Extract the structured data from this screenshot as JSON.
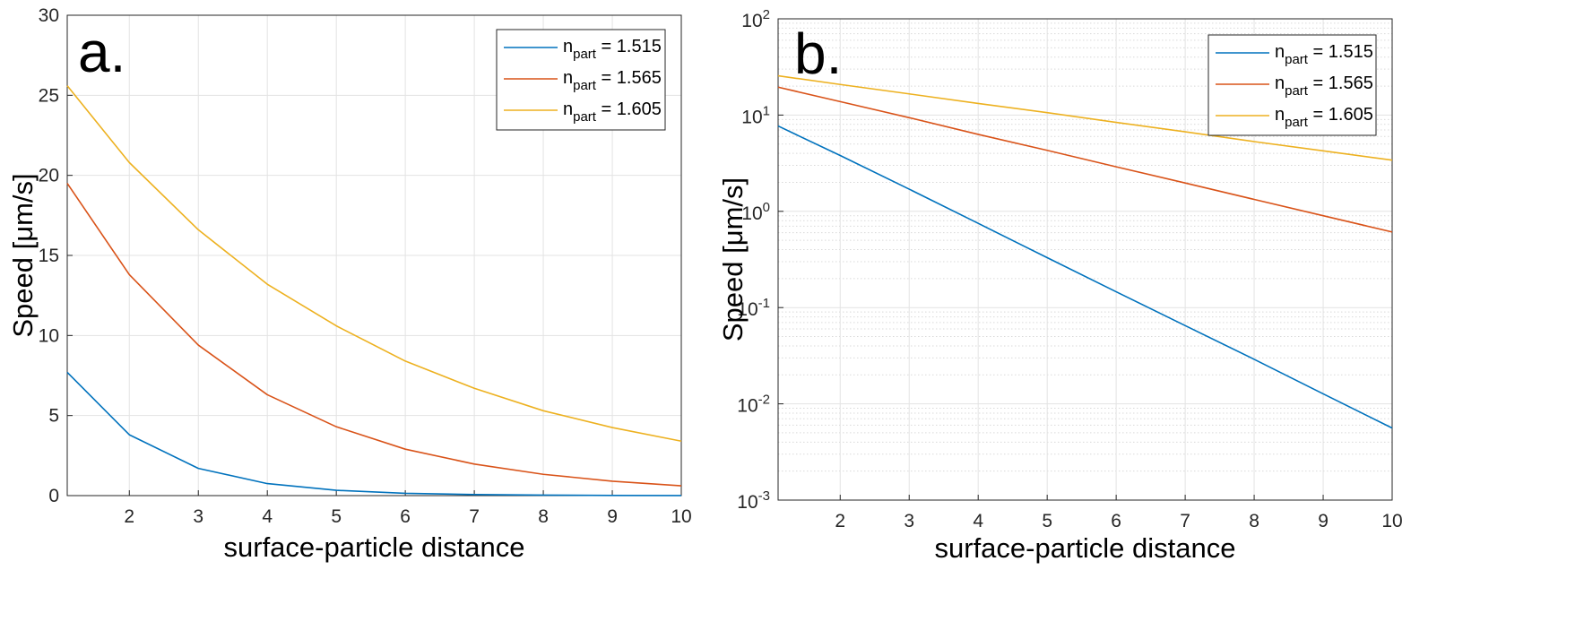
{
  "chart_data": [
    {
      "type": "line",
      "panel_label": "a.",
      "xlabel": "surface-particle distance",
      "ylabel": "Speed [μm/s]",
      "yscale": "linear",
      "xlim": [
        1.1,
        10
      ],
      "ylim": [
        0,
        30
      ],
      "xticks": [
        2,
        3,
        4,
        5,
        6,
        7,
        8,
        9,
        10
      ],
      "xtick_labels": [
        "2",
        "3",
        "4",
        "5",
        "6",
        "7",
        "8",
        "9",
        "10"
      ],
      "yticks": [
        0,
        5,
        10,
        15,
        20,
        25,
        30
      ],
      "ytick_labels": [
        "0",
        "5",
        "10",
        "15",
        "20",
        "25",
        "30"
      ],
      "grid": true,
      "legend_position": "top-right",
      "series": [
        {
          "name": "n_part = 1.515",
          "legend_prefix": "n",
          "legend_sub": "part",
          "legend_suffix": " = 1.515",
          "color": "#0072BD",
          "x": [
            1.1,
            2,
            3,
            4,
            5,
            6,
            7,
            8,
            9,
            10
          ],
          "y": [
            7.7,
            3.8,
            1.7,
            0.75,
            0.33,
            0.146,
            0.065,
            0.029,
            0.0127,
            0.0056
          ]
        },
        {
          "name": "n_part = 1.565",
          "legend_prefix": "n",
          "legend_sub": "part",
          "legend_suffix": " = 1.565",
          "color": "#D95319",
          "x": [
            1.1,
            2,
            3,
            4,
            5,
            6,
            7,
            8,
            9,
            10
          ],
          "y": [
            19.5,
            13.8,
            9.4,
            6.3,
            4.3,
            2.9,
            1.97,
            1.33,
            0.9,
            0.61
          ]
        },
        {
          "name": "n_part = 1.605",
          "legend_prefix": "n",
          "legend_sub": "part",
          "legend_suffix": " = 1.605",
          "color": "#EDB120",
          "x": [
            1.1,
            2,
            3,
            4,
            5,
            6,
            7,
            8,
            9,
            10
          ],
          "y": [
            25.6,
            20.8,
            16.6,
            13.2,
            10.6,
            8.4,
            6.7,
            5.3,
            4.25,
            3.4
          ]
        }
      ]
    },
    {
      "type": "line",
      "panel_label": "b.",
      "xlabel": "surface-particle distance",
      "ylabel": "Speed [μm/s]",
      "yscale": "log",
      "xlim": [
        1.1,
        10
      ],
      "ylim": [
        0.001,
        100
      ],
      "xticks": [
        2,
        3,
        4,
        5,
        6,
        7,
        8,
        9,
        10
      ],
      "xtick_labels": [
        "2",
        "3",
        "4",
        "5",
        "6",
        "7",
        "8",
        "9",
        "10"
      ],
      "yticks": [
        0.001,
        0.01,
        0.1,
        1,
        10,
        100
      ],
      "ytick_base": "10",
      "ytick_exponents": [
        "-3",
        "-2",
        "-1",
        "0",
        "1",
        "2"
      ],
      "grid": true,
      "minor_grid": true,
      "legend_position": "top-right",
      "series": [
        {
          "name": "n_part = 1.515",
          "legend_prefix": "n",
          "legend_sub": "part",
          "legend_suffix": " = 1.515",
          "color": "#0072BD",
          "x": [
            1.1,
            2,
            3,
            4,
            5,
            6,
            7,
            8,
            9,
            10
          ],
          "y": [
            7.7,
            3.8,
            1.7,
            0.75,
            0.33,
            0.146,
            0.065,
            0.029,
            0.0127,
            0.0056
          ]
        },
        {
          "name": "n_part = 1.565",
          "legend_prefix": "n",
          "legend_sub": "part",
          "legend_suffix": " = 1.565",
          "color": "#D95319",
          "x": [
            1.1,
            2,
            3,
            4,
            5,
            6,
            7,
            8,
            9,
            10
          ],
          "y": [
            19.5,
            13.8,
            9.4,
            6.3,
            4.3,
            2.9,
            1.97,
            1.33,
            0.9,
            0.61
          ]
        },
        {
          "name": "n_part = 1.605",
          "legend_prefix": "n",
          "legend_sub": "part",
          "legend_suffix": " = 1.605",
          "color": "#EDB120",
          "x": [
            1.1,
            2,
            3,
            4,
            5,
            6,
            7,
            8,
            9,
            10
          ],
          "y": [
            25.6,
            20.8,
            16.6,
            13.2,
            10.6,
            8.4,
            6.7,
            5.3,
            4.25,
            3.4
          ]
        }
      ]
    }
  ]
}
